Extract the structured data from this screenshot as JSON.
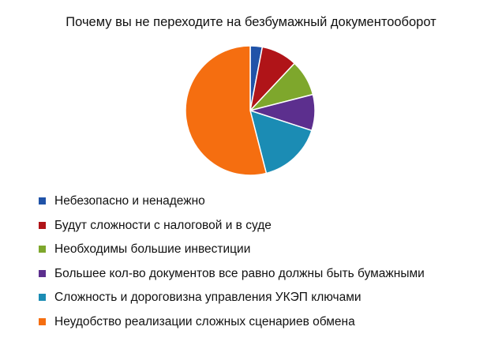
{
  "chart_data": {
    "type": "pie",
    "title": "Почему вы не переходите на безбумажный документооборот",
    "slices": [
      {
        "label": "Небезопасно и ненадежно",
        "value": 3,
        "color": "#2053a8"
      },
      {
        "label": "Будут сложности с налоговой и в суде",
        "value": 9,
        "color": "#b01418"
      },
      {
        "label": "Необходимы большие инвестиции",
        "value": 9,
        "color": "#7ea72c"
      },
      {
        "label": "Большее кол-во документов все равно должны быть бумажными",
        "value": 9,
        "color": "#5c2f8e"
      },
      {
        "label": "Сложность и дороговизна управления УКЭП ключами",
        "value": 16,
        "color": "#1b8cb4"
      },
      {
        "label": "Неудобство реализации сложных сценариев обмена",
        "value": 54,
        "color": "#f56e10"
      }
    ],
    "legend_position": "bottom"
  }
}
